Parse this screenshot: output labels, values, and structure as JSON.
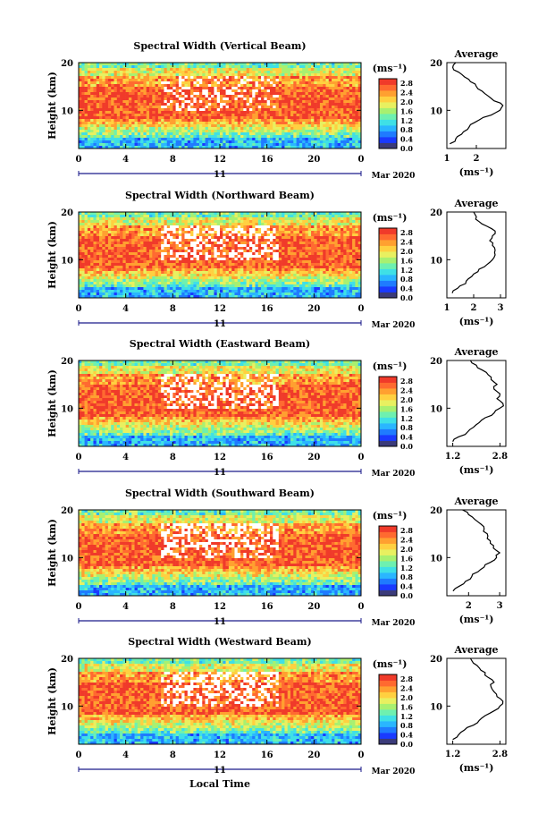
{
  "chart_data": {
    "type": "heatmap",
    "x_unit": "Local Time",
    "x_ticks": [
      "0",
      "4",
      "8",
      "12",
      "16",
      "20",
      "0"
    ],
    "xlim": [
      0,
      24
    ],
    "y_label": "Height (km)",
    "y_ticks": [
      "20",
      "10"
    ],
    "ylim": [
      2,
      20
    ],
    "date": {
      "day": "11",
      "month_year": "Mar 2020"
    },
    "colorbar": {
      "unit": "(ms⁻¹)",
      "ticks": [
        "2.8",
        "2.4",
        "2.0",
        "1.6",
        "1.2",
        "0.8",
        "0.4",
        "0.0"
      ],
      "range": [
        0.0,
        3.0
      ]
    },
    "average_title": "Average",
    "average_unit": "(ms⁻¹)",
    "panels": [
      {
        "title": "Spectral Width (Vertical Beam)",
        "avg_xticks": [
          "1",
          "2"
        ],
        "avg_xlim": [
          1.0,
          3.0
        ],
        "avg_profile": {
          "height_km": [
            3,
            4,
            5,
            6,
            7,
            8,
            9,
            10,
            11,
            12,
            13,
            14,
            15,
            16,
            17,
            18,
            19,
            20
          ],
          "width_ms": [
            1.1,
            1.3,
            1.5,
            1.7,
            1.8,
            2.1,
            2.5,
            2.8,
            2.9,
            2.6,
            2.4,
            2.2,
            2.0,
            1.8,
            1.6,
            1.4,
            1.2,
            1.3
          ]
        }
      },
      {
        "title": "Spectral Width (Northward Beam)",
        "avg_xticks": [
          "1",
          "2",
          "3"
        ],
        "avg_xlim": [
          1.0,
          3.2
        ],
        "avg_profile": {
          "height_km": [
            3,
            4,
            5,
            6,
            7,
            8,
            9,
            10,
            11,
            12,
            13,
            14,
            15,
            16,
            17,
            18,
            19,
            20
          ],
          "width_ms": [
            1.2,
            1.4,
            1.7,
            1.8,
            2.0,
            2.2,
            2.5,
            2.7,
            2.8,
            2.8,
            2.7,
            2.6,
            2.7,
            2.8,
            2.5,
            2.2,
            2.1,
            2.0
          ]
        }
      },
      {
        "title": "Spectral Width (Eastward Beam)",
        "avg_xticks": [
          "1.2",
          "2.8"
        ],
        "avg_xlim": [
          1.0,
          3.0
        ],
        "avg_profile": {
          "height_km": [
            3,
            4,
            5,
            6,
            7,
            8,
            9,
            10,
            11,
            12,
            13,
            14,
            15,
            16,
            17,
            18,
            19,
            20
          ],
          "width_ms": [
            1.2,
            1.4,
            1.7,
            1.9,
            2.1,
            2.3,
            2.6,
            2.8,
            2.9,
            2.7,
            2.8,
            2.6,
            2.7,
            2.5,
            2.4,
            2.2,
            2.0,
            1.8
          ]
        }
      },
      {
        "title": "Spectral Width (Southward Beam)",
        "avg_xticks": [
          "2",
          "3"
        ],
        "avg_xlim": [
          1.3,
          3.2
        ],
        "avg_profile": {
          "height_km": [
            3,
            4,
            5,
            6,
            7,
            8,
            9,
            10,
            11,
            12,
            13,
            14,
            15,
            16,
            17,
            18,
            19,
            20
          ],
          "width_ms": [
            1.5,
            1.7,
            1.9,
            2.1,
            2.3,
            2.5,
            2.7,
            2.9,
            3.0,
            2.8,
            2.7,
            2.6,
            2.6,
            2.5,
            2.4,
            2.2,
            2.0,
            1.8
          ]
        }
      },
      {
        "title": "Spectral Width (Westward Beam)",
        "avg_xticks": [
          "1.2",
          "2.8"
        ],
        "avg_xlim": [
          1.0,
          3.0
        ],
        "avg_profile": {
          "height_km": [
            3,
            4,
            5,
            6,
            7,
            8,
            9,
            10,
            11,
            12,
            13,
            14,
            15,
            16,
            17,
            18,
            19,
            20
          ],
          "width_ms": [
            1.2,
            1.4,
            1.6,
            1.9,
            2.1,
            2.3,
            2.6,
            2.8,
            2.9,
            2.7,
            2.6,
            2.5,
            2.6,
            2.4,
            2.3,
            2.1,
            1.9,
            1.8
          ]
        }
      }
    ]
  },
  "colors": {
    "palette": [
      "#3b3b7a",
      "#1a3aff",
      "#1f7bff",
      "#2ab6ff",
      "#3fe0e6",
      "#6ef0b0",
      "#a8f070",
      "#e8f060",
      "#ffd040",
      "#ffa030",
      "#ff6a30",
      "#f03a2a"
    ],
    "tick_mark": "#000000"
  }
}
